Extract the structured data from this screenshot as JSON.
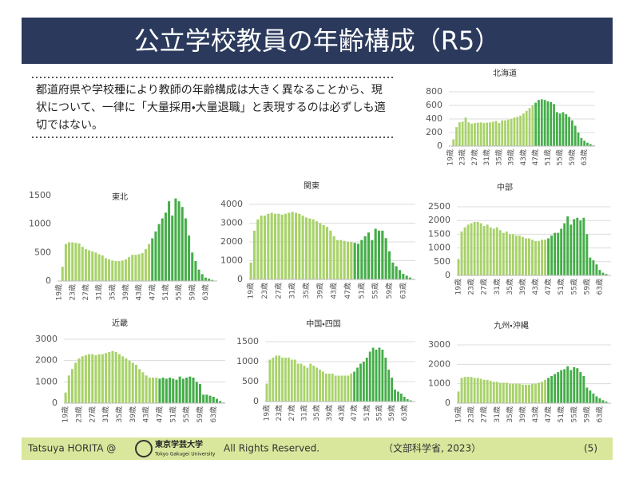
{
  "header": {
    "title": "公立学校教員の年齢構成（R5）"
  },
  "body_lines": [
    "都道府県や学校種により教師の年齢構成は大きく異なることから、現",
    "状について、一律に「大量採用・大量退職」と表現するのは必ずしも適",
    "切ではない。"
  ],
  "footer": {
    "author": "Tatsuya HORITA @",
    "logo_ja": "東京学芸大学",
    "logo_en": "Tokyo Gakugei University",
    "rights": "All Rights Reserved.",
    "source": "（文部科学省, 2023）",
    "page": "(5)"
  },
  "chart_data": [
    {
      "type": "bar",
      "title": "北海道",
      "categories": [
        "19歳",
        null,
        null,
        null,
        "23歳",
        null,
        null,
        null,
        "27歳",
        null,
        null,
        null,
        "31歳",
        null,
        null,
        null,
        "35歳",
        null,
        null,
        null,
        "39歳",
        null,
        null,
        null,
        "43歳",
        null,
        null,
        null,
        "47歳",
        null,
        null,
        null,
        "51歳",
        null,
        null,
        null,
        "55歳",
        null,
        null,
        null,
        "59歳",
        null,
        null,
        null,
        "63歳",
        null,
        null,
        null
      ],
      "values": [
        5,
        100,
        280,
        350,
        360,
        420,
        350,
        330,
        340,
        345,
        350,
        340,
        345,
        350,
        360,
        370,
        340,
        380,
        380,
        390,
        400,
        420,
        430,
        450,
        480,
        520,
        560,
        600,
        640,
        680,
        690,
        680,
        660,
        650,
        620,
        500,
        480,
        500,
        470,
        430,
        380,
        300,
        200,
        120,
        80,
        50,
        30,
        10
      ],
      "colors": [
        "#a8d26a",
        "#a8d26a",
        "#a8d26a",
        "#a8d26a",
        "#a8d26a",
        "#a8d26a",
        "#a8d26a",
        "#a8d26a",
        "#a8d26a",
        "#a8d26a",
        "#a8d26a",
        "#a8d26a",
        "#a8d26a",
        "#a8d26a",
        "#a8d26a",
        "#a8d26a",
        "#a8d26a",
        "#a8d26a",
        "#a8d26a",
        "#a8d26a",
        "#a8d26a",
        "#a8d26a",
        "#a8d26a",
        "#a8d26a",
        "#a8d26a",
        "#a8d26a",
        "#a8d26a",
        "#a8d26a",
        "#44ad48",
        "#44ad48",
        "#44ad48",
        "#44ad48",
        "#44ad48",
        "#44ad48",
        "#44ad48",
        "#44ad48",
        "#44ad48",
        "#44ad48",
        "#44ad48",
        "#44ad48",
        "#44ad48",
        "#44ad48",
        "#44ad48",
        "#44ad48",
        "#44ad48",
        "#44ad48",
        "#44ad48",
        "#44ad48"
      ],
      "ylim": [
        0,
        800
      ],
      "yticks": [
        0,
        200,
        400,
        600,
        800
      ],
      "grid": true
    },
    {
      "type": "bar",
      "title": "東北",
      "categories": [
        "19歳",
        null,
        null,
        null,
        "23歳",
        null,
        null,
        null,
        "27歳",
        null,
        null,
        null,
        "31歳",
        null,
        null,
        null,
        "35歳",
        null,
        null,
        null,
        "39歳",
        null,
        null,
        null,
        "43歳",
        null,
        null,
        null,
        "47歳",
        null,
        null,
        null,
        "51歳",
        null,
        null,
        null,
        "55歳",
        null,
        null,
        null,
        "59歳",
        null,
        null,
        null,
        "63歳",
        null,
        null,
        null
      ],
      "values": [
        5,
        250,
        650,
        680,
        680,
        670,
        660,
        600,
        560,
        540,
        520,
        500,
        470,
        450,
        400,
        380,
        360,
        350,
        350,
        360,
        380,
        420,
        460,
        460,
        470,
        490,
        560,
        650,
        750,
        870,
        1000,
        1100,
        1200,
        1400,
        1150,
        1450,
        1400,
        1300,
        1100,
        800,
        500,
        350,
        200,
        120,
        60,
        40,
        20,
        5
      ],
      "colors": [
        "#a8d26a",
        "#a8d26a",
        "#a8d26a",
        "#a8d26a",
        "#a8d26a",
        "#a8d26a",
        "#a8d26a",
        "#a8d26a",
        "#a8d26a",
        "#a8d26a",
        "#a8d26a",
        "#a8d26a",
        "#a8d26a",
        "#a8d26a",
        "#a8d26a",
        "#a8d26a",
        "#a8d26a",
        "#a8d26a",
        "#a8d26a",
        "#a8d26a",
        "#a8d26a",
        "#a8d26a",
        "#a8d26a",
        "#a8d26a",
        "#a8d26a",
        "#a8d26a",
        "#a8d26a",
        "#a8d26a",
        "#44ad48",
        "#44ad48",
        "#44ad48",
        "#44ad48",
        "#44ad48",
        "#44ad48",
        "#44ad48",
        "#44ad48",
        "#44ad48",
        "#44ad48",
        "#44ad48",
        "#44ad48",
        "#44ad48",
        "#44ad48",
        "#44ad48",
        "#44ad48",
        "#44ad48",
        "#44ad48",
        "#44ad48",
        "#44ad48"
      ],
      "ylim": [
        0,
        1500
      ],
      "yticks": [
        0,
        500,
        1000,
        1500
      ],
      "grid": false
    },
    {
      "type": "bar",
      "title": "関東",
      "categories": [
        "19歳",
        null,
        null,
        null,
        "23歳",
        null,
        null,
        null,
        "27歳",
        null,
        null,
        null,
        "31歳",
        null,
        null,
        null,
        "35歳",
        null,
        null,
        null,
        "39歳",
        null,
        null,
        null,
        "43歳",
        null,
        null,
        null,
        "47歳",
        null,
        null,
        null,
        "51歳",
        null,
        null,
        null,
        "55歳",
        null,
        null,
        null,
        "59歳",
        null,
        null,
        null,
        "63歳",
        null,
        null,
        null
      ],
      "values": [
        900,
        2600,
        3200,
        3400,
        3400,
        3500,
        3550,
        3500,
        3500,
        3450,
        3500,
        3550,
        3600,
        3550,
        3500,
        3400,
        3300,
        3250,
        3200,
        3100,
        3000,
        2900,
        2800,
        2600,
        2300,
        2100,
        2100,
        2050,
        2000,
        2000,
        1950,
        1900,
        2100,
        2300,
        2500,
        2100,
        2700,
        2600,
        2600,
        2200,
        1500,
        900,
        700,
        500,
        300,
        200,
        100,
        30
      ],
      "colors": [
        "#a8d26a",
        "#a8d26a",
        "#a8d26a",
        "#a8d26a",
        "#a8d26a",
        "#a8d26a",
        "#a8d26a",
        "#a8d26a",
        "#a8d26a",
        "#a8d26a",
        "#a8d26a",
        "#a8d26a",
        "#a8d26a",
        "#a8d26a",
        "#a8d26a",
        "#a8d26a",
        "#a8d26a",
        "#a8d26a",
        "#a8d26a",
        "#a8d26a",
        "#a8d26a",
        "#a8d26a",
        "#a8d26a",
        "#a8d26a",
        "#a8d26a",
        "#a8d26a",
        "#a8d26a",
        "#a8d26a",
        "#a8d26a",
        "#a8d26a",
        "#44ad48",
        "#44ad48",
        "#44ad48",
        "#44ad48",
        "#44ad48",
        "#44ad48",
        "#44ad48",
        "#44ad48",
        "#44ad48",
        "#44ad48",
        "#44ad48",
        "#44ad48",
        "#44ad48",
        "#44ad48",
        "#44ad48",
        "#44ad48",
        "#44ad48",
        "#44ad48"
      ],
      "ylim": [
        0,
        4000
      ],
      "yticks": [
        0,
        1000,
        2000,
        3000,
        4000
      ],
      "grid": true
    },
    {
      "type": "bar",
      "title": "中部",
      "categories": [
        "19歳",
        null,
        null,
        null,
        "23歳",
        null,
        null,
        null,
        "27歳",
        null,
        null,
        null,
        "31歳",
        null,
        null,
        null,
        "35歳",
        null,
        null,
        null,
        "39歳",
        null,
        null,
        null,
        "43歳",
        null,
        null,
        null,
        "47歳",
        null,
        null,
        null,
        "51歳",
        null,
        null,
        null,
        "55歳",
        null,
        null,
        null,
        "59歳",
        null,
        null,
        null,
        "63歳",
        null,
        null,
        null
      ],
      "values": [
        600,
        1600,
        1750,
        1850,
        1900,
        1950,
        1950,
        1900,
        1800,
        1850,
        1750,
        1700,
        1750,
        1650,
        1550,
        1600,
        1500,
        1500,
        1450,
        1450,
        1400,
        1350,
        1350,
        1300,
        1250,
        1250,
        1300,
        1300,
        1350,
        1450,
        1550,
        1550,
        1700,
        1900,
        2150,
        1850,
        2050,
        2100,
        2000,
        2100,
        1500,
        650,
        550,
        400,
        200,
        100,
        50,
        10
      ],
      "colors": [
        "#a8d26a",
        "#a8d26a",
        "#a8d26a",
        "#a8d26a",
        "#a8d26a",
        "#a8d26a",
        "#a8d26a",
        "#a8d26a",
        "#a8d26a",
        "#a8d26a",
        "#a8d26a",
        "#a8d26a",
        "#a8d26a",
        "#a8d26a",
        "#a8d26a",
        "#a8d26a",
        "#a8d26a",
        "#a8d26a",
        "#a8d26a",
        "#a8d26a",
        "#a8d26a",
        "#a8d26a",
        "#a8d26a",
        "#a8d26a",
        "#a8d26a",
        "#a8d26a",
        "#a8d26a",
        "#a8d26a",
        "#44ad48",
        "#44ad48",
        "#44ad48",
        "#44ad48",
        "#44ad48",
        "#44ad48",
        "#44ad48",
        "#44ad48",
        "#44ad48",
        "#44ad48",
        "#44ad48",
        "#44ad48",
        "#44ad48",
        "#44ad48",
        "#44ad48",
        "#44ad48",
        "#44ad48",
        "#44ad48",
        "#44ad48",
        "#44ad48"
      ],
      "ylim": [
        0,
        2500
      ],
      "yticks": [
        0,
        500,
        1000,
        1500,
        2000,
        2500
      ],
      "grid": true
    },
    {
      "type": "bar",
      "title": "近畿",
      "categories": [
        "19歳",
        null,
        null,
        null,
        "23歳",
        null,
        null,
        null,
        "27歳",
        null,
        null,
        null,
        "31歳",
        null,
        null,
        null,
        "35歳",
        null,
        null,
        null,
        "39歳",
        null,
        null,
        null,
        "43歳",
        null,
        null,
        null,
        "47歳",
        null,
        null,
        null,
        "51歳",
        null,
        null,
        null,
        "55歳",
        null,
        null,
        null,
        "59歳",
        null,
        null,
        null,
        "63歳",
        null,
        null,
        null
      ],
      "values": [
        500,
        1300,
        1600,
        1900,
        2100,
        2200,
        2250,
        2300,
        2300,
        2250,
        2300,
        2300,
        2350,
        2400,
        2450,
        2400,
        2300,
        2200,
        2100,
        2000,
        1900,
        1800,
        1600,
        1450,
        1300,
        1200,
        1200,
        1200,
        1150,
        1200,
        1150,
        1200,
        1150,
        1100,
        1250,
        1150,
        1200,
        1250,
        1200,
        1000,
        900,
        400,
        400,
        350,
        300,
        200,
        100,
        30
      ],
      "colors": [
        "#a8d26a",
        "#a8d26a",
        "#a8d26a",
        "#a8d26a",
        "#a8d26a",
        "#a8d26a",
        "#a8d26a",
        "#a8d26a",
        "#a8d26a",
        "#a8d26a",
        "#a8d26a",
        "#a8d26a",
        "#a8d26a",
        "#a8d26a",
        "#a8d26a",
        "#a8d26a",
        "#a8d26a",
        "#a8d26a",
        "#a8d26a",
        "#a8d26a",
        "#a8d26a",
        "#a8d26a",
        "#a8d26a",
        "#a8d26a",
        "#a8d26a",
        "#a8d26a",
        "#a8d26a",
        "#a8d26a",
        "#44ad48",
        "#44ad48",
        "#44ad48",
        "#44ad48",
        "#44ad48",
        "#44ad48",
        "#44ad48",
        "#44ad48",
        "#44ad48",
        "#44ad48",
        "#44ad48",
        "#44ad48",
        "#44ad48",
        "#44ad48",
        "#44ad48",
        "#44ad48",
        "#44ad48",
        "#44ad48",
        "#44ad48",
        "#44ad48"
      ],
      "ylim": [
        0,
        3000
      ],
      "yticks": [
        0,
        1000,
        2000,
        3000
      ],
      "grid": true
    },
    {
      "type": "bar",
      "title": "中国・四国",
      "categories": [
        "19歳",
        null,
        null,
        null,
        "23歳",
        null,
        null,
        null,
        "27歳",
        null,
        null,
        null,
        "31歳",
        null,
        null,
        null,
        "35歳",
        null,
        null,
        null,
        "39歳",
        null,
        null,
        null,
        "43歳",
        null,
        null,
        null,
        "47歳",
        null,
        null,
        null,
        "51歳",
        null,
        null,
        null,
        "55歳",
        null,
        null,
        null,
        "59歳",
        null,
        null,
        null,
        "63歳",
        null,
        null,
        null
      ],
      "values": [
        450,
        1050,
        1100,
        1150,
        1150,
        1100,
        1100,
        1100,
        1050,
        1050,
        950,
        950,
        900,
        850,
        950,
        900,
        850,
        800,
        750,
        700,
        700,
        700,
        650,
        650,
        650,
        650,
        650,
        700,
        750,
        850,
        950,
        1000,
        1100,
        1250,
        1350,
        1300,
        1350,
        1300,
        1100,
        800,
        600,
        300,
        250,
        200,
        120,
        60,
        30,
        10
      ],
      "colors": [
        "#a8d26a",
        "#a8d26a",
        "#a8d26a",
        "#a8d26a",
        "#a8d26a",
        "#a8d26a",
        "#a8d26a",
        "#a8d26a",
        "#a8d26a",
        "#a8d26a",
        "#a8d26a",
        "#a8d26a",
        "#a8d26a",
        "#a8d26a",
        "#a8d26a",
        "#a8d26a",
        "#a8d26a",
        "#a8d26a",
        "#a8d26a",
        "#a8d26a",
        "#a8d26a",
        "#a8d26a",
        "#a8d26a",
        "#a8d26a",
        "#a8d26a",
        "#a8d26a",
        "#a8d26a",
        "#a8d26a",
        "#44ad48",
        "#44ad48",
        "#44ad48",
        "#44ad48",
        "#44ad48",
        "#44ad48",
        "#44ad48",
        "#44ad48",
        "#44ad48",
        "#44ad48",
        "#44ad48",
        "#44ad48",
        "#44ad48",
        "#44ad48",
        "#44ad48",
        "#44ad48",
        "#44ad48",
        "#44ad48",
        "#44ad48",
        "#44ad48"
      ],
      "ylim": [
        0,
        1500
      ],
      "yticks": [
        0,
        500,
        1000,
        1500
      ],
      "grid": true
    },
    {
      "type": "bar",
      "title": "九州・沖縄",
      "categories": [
        "19歳",
        null,
        null,
        null,
        "23歳",
        null,
        null,
        null,
        "27歳",
        null,
        null,
        null,
        "31歳",
        null,
        null,
        null,
        "35歳",
        null,
        null,
        null,
        "39歳",
        null,
        null,
        null,
        "43歳",
        null,
        null,
        null,
        "47歳",
        null,
        null,
        null,
        "51歳",
        null,
        null,
        null,
        "55歳",
        null,
        null,
        null,
        "59歳",
        null,
        null,
        null,
        "63歳",
        null,
        null,
        null
      ],
      "values": [
        600,
        1300,
        1350,
        1350,
        1350,
        1300,
        1300,
        1250,
        1200,
        1200,
        1150,
        1100,
        1100,
        1050,
        1050,
        1050,
        1000,
        1000,
        1000,
        1000,
        950,
        950,
        950,
        1000,
        1000,
        1050,
        1100,
        1200,
        1300,
        1400,
        1500,
        1600,
        1700,
        1750,
        1900,
        1700,
        1850,
        1800,
        1600,
        1400,
        800,
        650,
        500,
        350,
        250,
        150,
        80,
        20
      ],
      "colors": [
        "#a8d26a",
        "#a8d26a",
        "#a8d26a",
        "#a8d26a",
        "#a8d26a",
        "#a8d26a",
        "#a8d26a",
        "#a8d26a",
        "#a8d26a",
        "#a8d26a",
        "#a8d26a",
        "#a8d26a",
        "#a8d26a",
        "#a8d26a",
        "#a8d26a",
        "#a8d26a",
        "#a8d26a",
        "#a8d26a",
        "#a8d26a",
        "#a8d26a",
        "#a8d26a",
        "#a8d26a",
        "#a8d26a",
        "#a8d26a",
        "#a8d26a",
        "#a8d26a",
        "#a8d26a",
        "#a8d26a",
        "#44ad48",
        "#44ad48",
        "#44ad48",
        "#44ad48",
        "#44ad48",
        "#44ad48",
        "#44ad48",
        "#44ad48",
        "#44ad48",
        "#44ad48",
        "#44ad48",
        "#44ad48",
        "#44ad48",
        "#44ad48",
        "#44ad48",
        "#44ad48",
        "#44ad48",
        "#44ad48",
        "#44ad48",
        "#44ad48"
      ],
      "ylim": [
        0,
        3000
      ],
      "yticks": [
        0,
        1000,
        2000,
        3000
      ],
      "grid": true
    }
  ]
}
